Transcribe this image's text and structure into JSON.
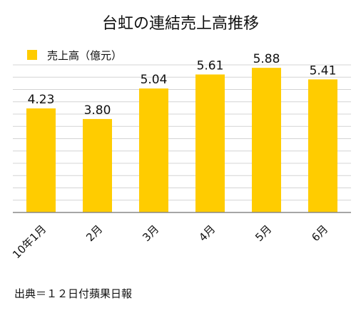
{
  "chart_data": {
    "type": "bar",
    "title": "台虹の連結売上高推移",
    "categories": [
      "10年1月",
      "2月",
      "3月",
      "4月",
      "5月",
      "6月"
    ],
    "series": [
      {
        "name": "売上高（億元）",
        "values": [
          4.23,
          3.8,
          5.04,
          5.61,
          5.88,
          5.41
        ],
        "color": "#FFCC00"
      }
    ],
    "ylim": [
      0,
      6
    ],
    "grid": true,
    "legend": "top-left",
    "source": "出典＝１２日付蘋果日報"
  }
}
